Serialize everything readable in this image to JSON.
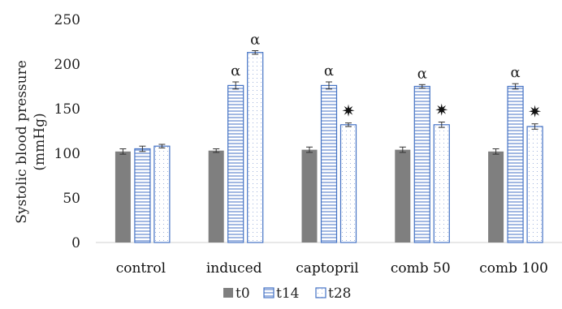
{
  "chart_data": {
    "type": "bar",
    "ylabel_line1": "Systolic blood pressure",
    "ylabel_line2": "(mmHg)",
    "ylim": [
      0,
      250
    ],
    "yticks": [
      "0",
      "50",
      "100",
      "150",
      "200",
      "250"
    ],
    "grid": false,
    "legend_position": "bottom",
    "categories": [
      "control",
      "induced",
      "captopril",
      "comb 50",
      "comb 100"
    ],
    "series": [
      {
        "name": "t0",
        "values": [
          102,
          103,
          104,
          104,
          102
        ],
        "errors": [
          3,
          2,
          3,
          3,
          3
        ],
        "color": "#7f7f7f",
        "pattern": "solid"
      },
      {
        "name": "t14",
        "values": [
          105,
          176,
          176,
          175,
          175
        ],
        "errors": [
          3,
          4,
          4,
          2,
          3
        ],
        "color": "#4472c4",
        "pattern": "horizontal-lines"
      },
      {
        "name": "t28",
        "values": [
          108,
          213,
          132,
          132,
          130
        ],
        "errors": [
          2,
          2,
          2,
          3,
          3
        ],
        "color": "#4472c4",
        "pattern": "dots"
      }
    ],
    "annotations": {
      "alpha_symbol": "α",
      "star_symbol": "✷",
      "marks": [
        {
          "category": "induced",
          "series": "t14",
          "symbol": "α"
        },
        {
          "category": "induced",
          "series": "t28",
          "symbol": "α"
        },
        {
          "category": "captopril",
          "series": "t14",
          "symbol": "α"
        },
        {
          "category": "captopril",
          "series": "t28",
          "symbol": "✷"
        },
        {
          "category": "comb 50",
          "series": "t14",
          "symbol": "α"
        },
        {
          "category": "comb 50",
          "series": "t28",
          "symbol": "✷"
        },
        {
          "category": "comb 100",
          "series": "t14",
          "symbol": "α"
        },
        {
          "category": "comb 100",
          "series": "t28",
          "symbol": "✷"
        }
      ]
    }
  }
}
